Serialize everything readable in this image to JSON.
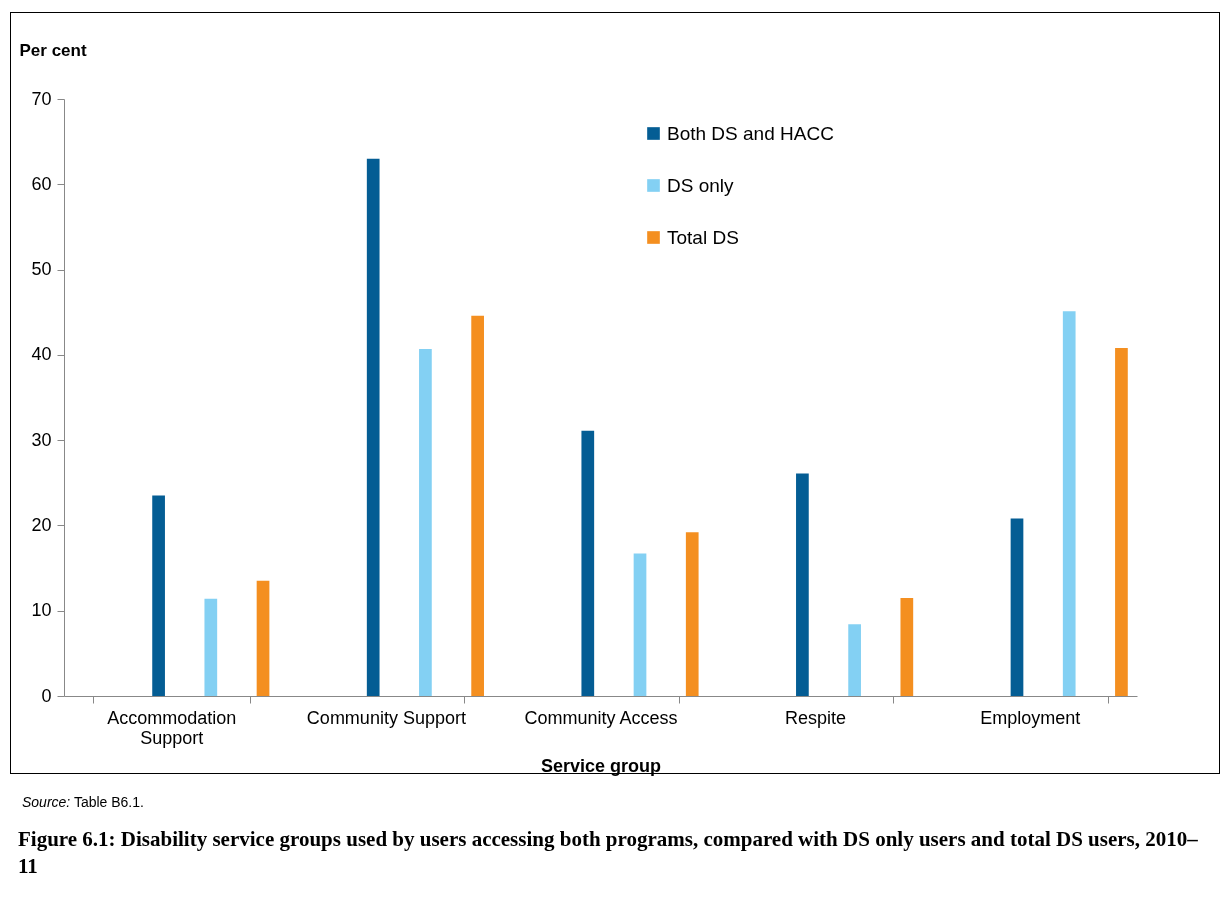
{
  "chart_data": {
    "type": "bar",
    "title": "Figure 6.1: Disability service groups used by users accessing both programs, compared with DS only users and total DS users, 2010–11",
    "xlabel": "Service group",
    "ylabel": "Per cent",
    "annotations": [
      "Source: Table B6.1."
    ],
    "categories": [
      "Accommodation Support",
      "Community Support",
      "Community Access",
      "Respite",
      "Employment"
    ],
    "series": [
      {
        "name": "Both DS and HACC",
        "color": "#045d94",
        "values": [
          23.5,
          63.0,
          31.1,
          26.1,
          20.8
        ]
      },
      {
        "name": "DS only",
        "color": "#83d0f3",
        "values": [
          11.4,
          40.7,
          16.7,
          8.4,
          45.1
        ]
      },
      {
        "name": "Total DS",
        "color": "#f48f20",
        "values": [
          13.5,
          44.6,
          19.2,
          11.5,
          40.8
        ]
      }
    ],
    "ylim": [
      0,
      70
    ],
    "yticks": [
      0,
      10,
      20,
      30,
      40,
      50,
      60,
      70
    ],
    "grid": false,
    "legend": "top right"
  }
}
